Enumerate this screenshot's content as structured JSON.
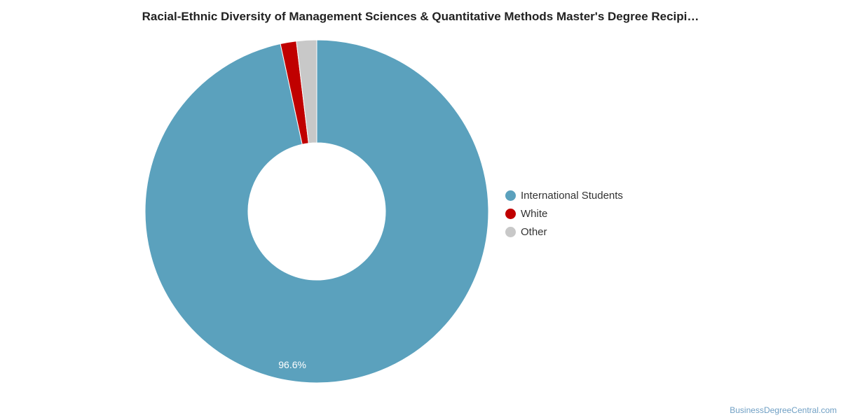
{
  "chart_data": {
    "type": "pie",
    "title": "Racial-Ethnic Diversity of Management Sciences & Quantitative Methods Master's Degree Recipi…",
    "donut": true,
    "legend_position": "right",
    "series": [
      {
        "name": "International Students",
        "value": 96.6,
        "color": "#5ba1bd",
        "label": "96.6%"
      },
      {
        "name": "White",
        "value": 1.5,
        "color": "#c00000",
        "label": ""
      },
      {
        "name": "Other",
        "value": 1.9,
        "color": "#c8c8c8",
        "label": ""
      }
    ]
  },
  "source": {
    "credit": "BusinessDegreeCentral.com"
  }
}
